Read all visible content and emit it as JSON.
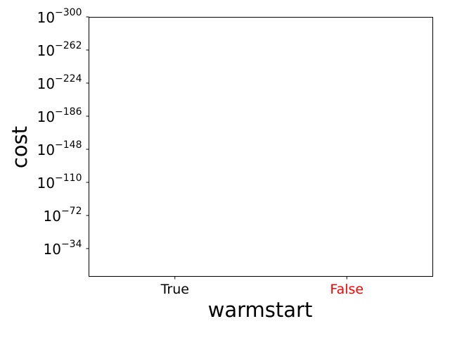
{
  "chart_data": {
    "type": "scatter",
    "title": "",
    "xlabel": "warmstart",
    "ylabel": "cost",
    "categories": [
      "True",
      "False"
    ],
    "category_colors": [
      "#000000",
      "#ff0000"
    ],
    "yscale": "log",
    "y_ticks": [
      {
        "base": "10",
        "exp": "−300"
      },
      {
        "base": "10",
        "exp": "−262"
      },
      {
        "base": "10",
        "exp": "−224"
      },
      {
        "base": "10",
        "exp": "−186"
      },
      {
        "base": "10",
        "exp": "−148"
      },
      {
        "base": "10",
        "exp": "−110"
      },
      {
        "base": "10",
        "exp": "−72"
      },
      {
        "base": "10",
        "exp": "−34"
      }
    ],
    "series": [],
    "grid": false,
    "legend": "none"
  }
}
